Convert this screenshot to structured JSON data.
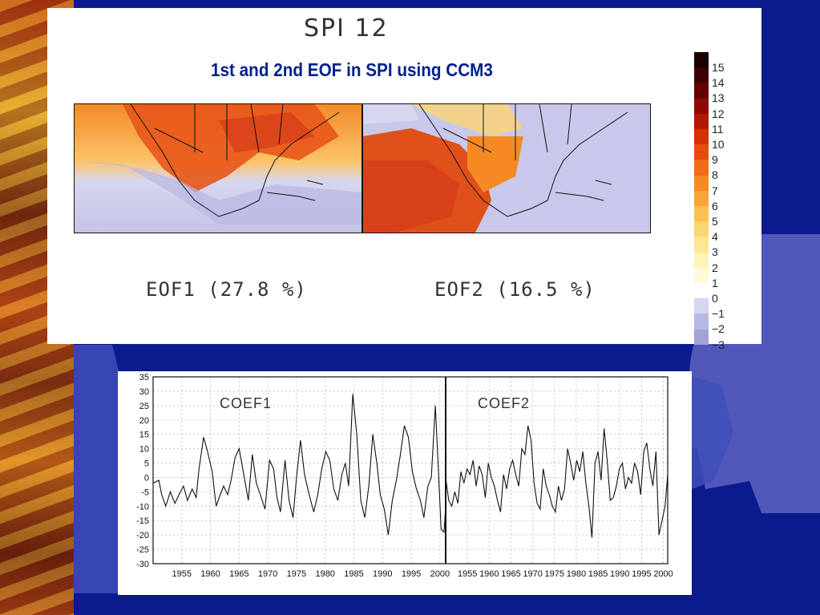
{
  "slide": {
    "spi_title": "SPI 12",
    "main_title": "1st and 2nd EOF in SPI using CCM3"
  },
  "eof_panels": [
    {
      "label": "EOF1 (27.8 %)"
    },
    {
      "label": "EOF2 (16.5 %)"
    }
  ],
  "colorbar": {
    "labels": [
      "15",
      "14",
      "13",
      "12",
      "11",
      "10",
      "9",
      "8",
      "7",
      "6",
      "5",
      "4",
      "3",
      "2",
      "1",
      "0",
      "−1",
      "−2",
      "−3"
    ],
    "colors": [
      "#1a0000",
      "#3d0000",
      "#650000",
      "#8c0a00",
      "#b01800",
      "#d43000",
      "#e84a10",
      "#f06a18",
      "#f58a25",
      "#f9a43a",
      "#fcbe55",
      "#fdd472",
      "#fee692",
      "#fff3b5",
      "#fffbd8",
      "#ffffff",
      "#d6d6f0",
      "#b8b8e4",
      "#a2a2d8"
    ],
    "eof1_accent": "#e8561a",
    "eof2_accent": "#d8401a",
    "negative_color": "#b8b8e4"
  },
  "chart_data": {
    "type": "line",
    "ylim": [
      -30,
      35
    ],
    "yticks": [
      35,
      30,
      25,
      20,
      15,
      10,
      5,
      0,
      -5,
      -10,
      -15,
      -20,
      -25,
      -30
    ],
    "grid": true,
    "panels": [
      {
        "annotation": "COEF1",
        "xlim": [
          1950,
          2001
        ],
        "xticks": [
          1955,
          1960,
          1965,
          1970,
          1975,
          1980,
          1985,
          1990,
          1995,
          2000
        ],
        "x": [
          1950.0,
          1951.0,
          1951.5,
          1952.2,
          1953.0,
          1953.8,
          1954.5,
          1955.3,
          1956.0,
          1956.8,
          1957.5,
          1958.0,
          1958.8,
          1959.5,
          1960.3,
          1961.0,
          1961.7,
          1962.3,
          1963.0,
          1963.6,
          1964.3,
          1965.0,
          1965.8,
          1966.6,
          1967.3,
          1968.0,
          1968.7,
          1969.5,
          1970.3,
          1971.0,
          1971.6,
          1972.2,
          1973.0,
          1973.7,
          1974.4,
          1975.0,
          1975.7,
          1976.4,
          1977.2,
          1978.0,
          1978.7,
          1979.4,
          1980.1,
          1980.8,
          1981.5,
          1982.2,
          1982.9,
          1983.5,
          1984.1,
          1984.8,
          1985.5,
          1986.2,
          1986.9,
          1987.6,
          1988.3,
          1989.0,
          1989.6,
          1990.3,
          1991.0,
          1991.7,
          1992.4,
          1993.1,
          1993.8,
          1994.5,
          1995.2,
          1995.9,
          1996.6,
          1997.2,
          1997.9,
          1998.5,
          1999.2,
          1999.7,
          2000.2,
          2000.7,
          2001.0
        ],
        "y": [
          -2,
          -1,
          -6,
          -10,
          -5,
          -9,
          -6,
          -3,
          -8,
          -4,
          -7,
          3,
          14,
          9,
          2,
          -10,
          -6,
          -3,
          -6,
          -1,
          7,
          10,
          1,
          -8,
          8,
          -2,
          -6,
          -11,
          6,
          3,
          -7,
          -12,
          6,
          -8,
          -14,
          0,
          13,
          1,
          -6,
          -12,
          -6,
          3,
          9,
          6,
          -4,
          -8,
          1,
          5,
          -3,
          29,
          15,
          -8,
          -14,
          -3,
          15,
          5,
          -6,
          -11,
          -20,
          -8,
          -1,
          8,
          18,
          14,
          2,
          -4,
          -8,
          -14,
          -3,
          0,
          25,
          4,
          -18,
          -19,
          -10
        ]
      },
      {
        "annotation": "COEF2",
        "xlim": [
          1950,
          2001
        ],
        "xticks": [
          1955,
          1960,
          1965,
          1970,
          1975,
          1980,
          1985,
          1990,
          1995,
          2000
        ],
        "x": [
          1950.0,
          1950.7,
          1951.4,
          1952.1,
          1952.8,
          1953.5,
          1954.2,
          1954.9,
          1955.6,
          1956.3,
          1957.0,
          1957.7,
          1958.4,
          1959.1,
          1959.8,
          1960.5,
          1961.2,
          1961.9,
          1962.6,
          1963.3,
          1964.0,
          1964.7,
          1965.4,
          1966.1,
          1966.8,
          1967.5,
          1968.2,
          1968.9,
          1969.6,
          1970.3,
          1971.0,
          1971.7,
          1972.4,
          1973.1,
          1973.8,
          1974.5,
          1975.2,
          1975.9,
          1976.6,
          1977.3,
          1978.0,
          1978.7,
          1979.4,
          1980.1,
          1980.8,
          1981.5,
          1982.2,
          1982.9,
          1983.6,
          1984.3,
          1985.0,
          1985.7,
          1986.4,
          1987.1,
          1987.8,
          1988.5,
          1989.2,
          1989.9,
          1990.6,
          1991.3,
          1992.0,
          1992.7,
          1993.4,
          1994.1,
          1994.8,
          1995.5,
          1996.2,
          1996.9,
          1997.6,
          1998.3,
          1999.0,
          1999.7,
          2000.4,
          2001.0
        ],
        "y": [
          0,
          -8,
          -10,
          -5,
          -9,
          2,
          -2,
          3,
          1,
          6,
          -3,
          4,
          1,
          -7,
          5,
          0,
          -3,
          -8,
          -12,
          1,
          -4,
          3,
          6,
          1,
          -3,
          10,
          8,
          18,
          13,
          -2,
          -9,
          -11,
          3,
          -3,
          -6,
          -10,
          -12,
          -3,
          -8,
          -4,
          10,
          5,
          -1,
          6,
          2,
          9,
          -2,
          -10,
          -21,
          5,
          9,
          -1,
          17,
          6,
          -8,
          -7,
          -3,
          3,
          5,
          -4,
          0,
          -2,
          5,
          2,
          -6,
          9,
          12,
          3,
          -3,
          9,
          -20,
          -15,
          -10,
          1
        ]
      }
    ]
  }
}
